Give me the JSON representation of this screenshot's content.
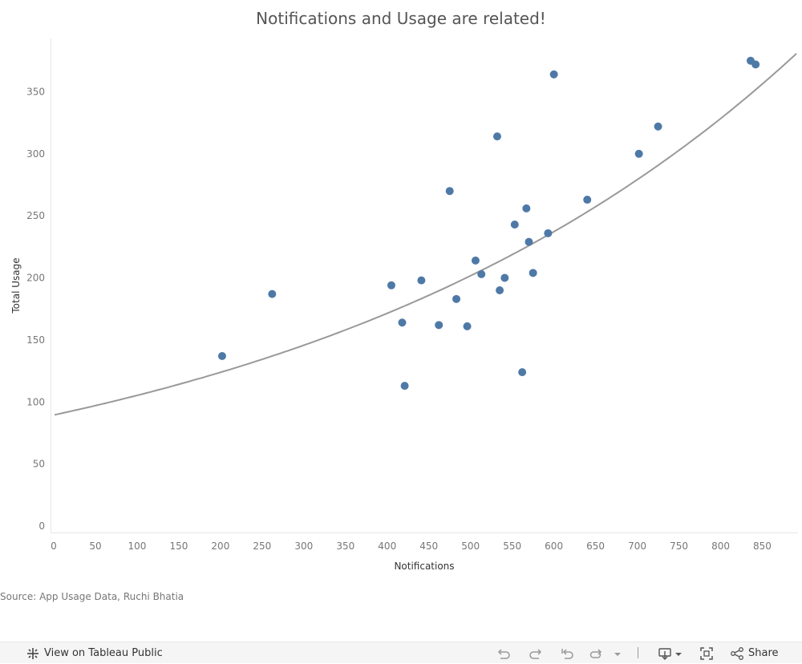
{
  "chart_data": {
    "type": "scatter",
    "title": "Notifications and Usage are related!",
    "xlabel": "Notifications",
    "ylabel": "Total Usage",
    "xlim": [
      0,
      895
    ],
    "ylim": [
      0,
      393
    ],
    "x_ticks": [
      0,
      50,
      100,
      150,
      200,
      250,
      300,
      350,
      400,
      450,
      500,
      550,
      600,
      650,
      700,
      750,
      800,
      850
    ],
    "y_ticks": [
      0,
      50,
      100,
      150,
      200,
      250,
      300,
      350
    ],
    "grid": false,
    "point_color": "#4e79a7",
    "trend_color": "#999999",
    "trend_line": {
      "type": "exponential",
      "intercept": 89.5,
      "growth_rate": 0.001625
    },
    "points": [
      {
        "x": 202,
        "y": 137
      },
      {
        "x": 262,
        "y": 187
      },
      {
        "x": 405,
        "y": 194
      },
      {
        "x": 418,
        "y": 164
      },
      {
        "x": 421,
        "y": 113
      },
      {
        "x": 441,
        "y": 198
      },
      {
        "x": 462,
        "y": 162
      },
      {
        "x": 475,
        "y": 270
      },
      {
        "x": 483,
        "y": 183
      },
      {
        "x": 496,
        "y": 161
      },
      {
        "x": 506,
        "y": 214
      },
      {
        "x": 513,
        "y": 203
      },
      {
        "x": 532,
        "y": 314
      },
      {
        "x": 535,
        "y": 190
      },
      {
        "x": 541,
        "y": 200
      },
      {
        "x": 553,
        "y": 243
      },
      {
        "x": 562,
        "y": 124
      },
      {
        "x": 567,
        "y": 256
      },
      {
        "x": 570,
        "y": 229
      },
      {
        "x": 575,
        "y": 204
      },
      {
        "x": 593,
        "y": 236
      },
      {
        "x": 600,
        "y": 364
      },
      {
        "x": 640,
        "y": 263
      },
      {
        "x": 702,
        "y": 300
      },
      {
        "x": 725,
        "y": 322
      },
      {
        "x": 836,
        "y": 375
      },
      {
        "x": 842,
        "y": 372
      }
    ]
  },
  "source_text": "Source: App Usage Data, Ruchi Bhatia",
  "toolbar": {
    "view_label": "View on Tableau Public",
    "share_label": "Share",
    "icons": [
      "tableau-logo-icon",
      "undo-icon",
      "redo-icon",
      "revert-icon",
      "refresh-icon",
      "dropdown-icon",
      "download-icon",
      "fullscreen-icon",
      "share-icon"
    ]
  }
}
